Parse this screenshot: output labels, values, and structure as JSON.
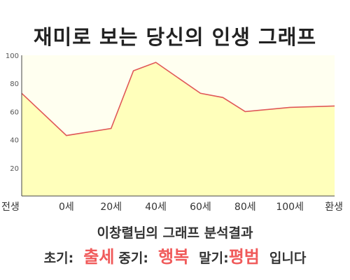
{
  "title": "재미로 보는 당신의 인생 그래프",
  "chart_data": {
    "type": "area",
    "x": [
      "전생",
      "0세",
      "20세",
      "40세",
      "60세",
      "80세",
      "100세",
      "환생"
    ],
    "points": [
      {
        "x": 0,
        "y": 73
      },
      {
        "x": 1,
        "y": 43
      },
      {
        "x": 2,
        "y": 48
      },
      {
        "x": 2.5,
        "y": 89
      },
      {
        "x": 3,
        "y": 95
      },
      {
        "x": 4,
        "y": 73
      },
      {
        "x": 4.5,
        "y": 70
      },
      {
        "x": 5,
        "y": 60
      },
      {
        "x": 6,
        "y": 63
      },
      {
        "x": 7,
        "y": 64
      }
    ],
    "yticks": [
      20,
      40,
      60,
      80,
      100
    ],
    "ylim": [
      0,
      100
    ],
    "grid": false,
    "colors": {
      "line": "#e05858",
      "fill": "#ffffbb",
      "plot_bg": "#fffff0"
    }
  },
  "subtitle": "이창렬님의 그래프 분석결과",
  "summary": {
    "early_label": "초기:",
    "early_value": "출세",
    "middle_label": "중기:",
    "middle_value": "행복",
    "late_label": "말기:",
    "late_value": "평범",
    "ending": "입니다"
  }
}
